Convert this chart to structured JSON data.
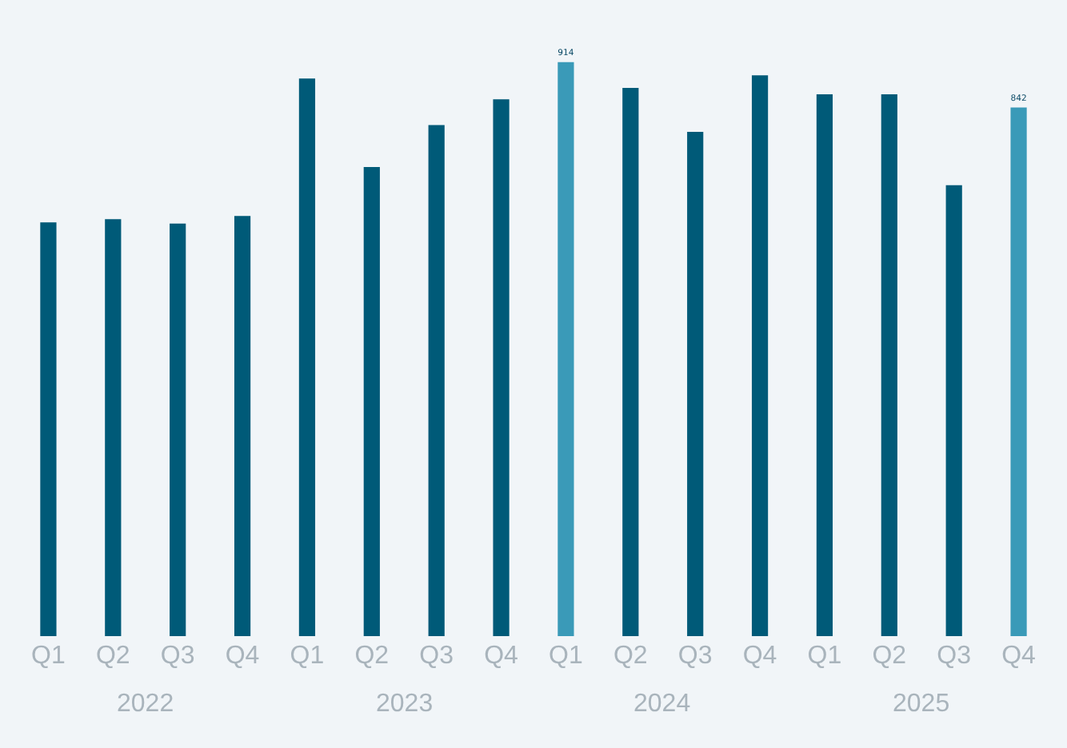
{
  "chart_data": {
    "type": "bar",
    "categories": [
      "Q1",
      "Q2",
      "Q3",
      "Q4",
      "Q1",
      "Q2",
      "Q3",
      "Q4",
      "Q1",
      "Q2",
      "Q3",
      "Q4",
      "Q1",
      "Q2",
      "Q3",
      "Q4"
    ],
    "values": [
      659,
      664,
      657,
      669,
      888,
      747,
      814,
      855,
      914,
      873,
      803,
      893,
      863,
      863,
      718,
      842
    ],
    "colors": [
      "#005a78",
      "#005a78",
      "#005a78",
      "#005a78",
      "#005a78",
      "#005a78",
      "#005a78",
      "#005a78",
      "#3a9ab8",
      "#005a78",
      "#005a78",
      "#005a78",
      "#005a78",
      "#005a78",
      "#005a78",
      "#3a9ab8"
    ],
    "value_labels": [
      null,
      null,
      null,
      null,
      null,
      null,
      null,
      null,
      "914",
      null,
      null,
      null,
      null,
      null,
      null,
      "842"
    ],
    "annotations": [
      "2022",
      "2023",
      "2024",
      "2025"
    ],
    "grid": false,
    "legend": false
  }
}
